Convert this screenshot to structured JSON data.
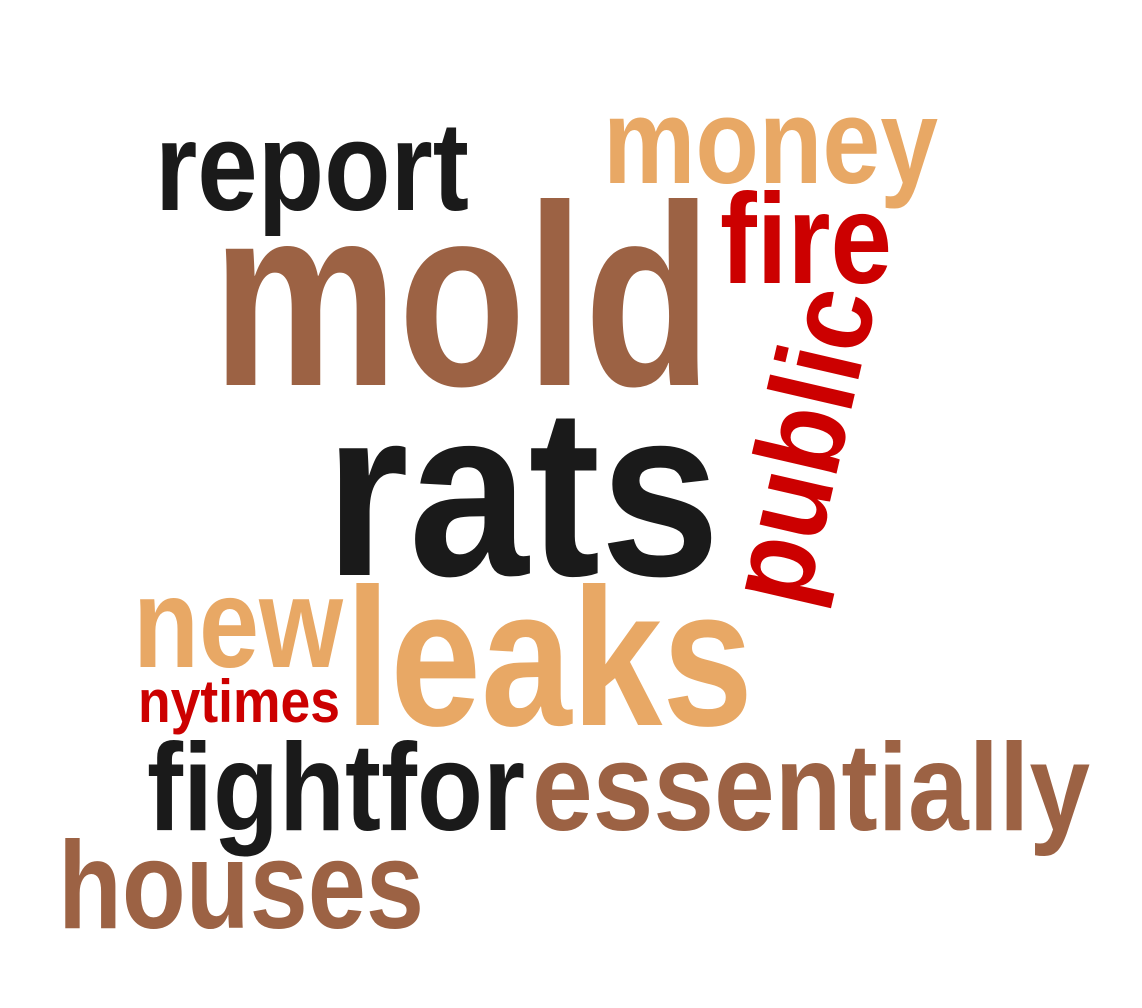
{
  "colors": {
    "brown": "#9c6244",
    "black": "#1a1a1a",
    "tan": "#e8a865",
    "red": "#cc0000"
  },
  "words": [
    {
      "text": "report",
      "color": "brown_black"
    },
    {
      "text": "money",
      "color": "tan"
    },
    {
      "text": "mold",
      "color": "brown"
    },
    {
      "text": "fire",
      "color": "red"
    },
    {
      "text": "public",
      "color": "red"
    },
    {
      "text": "rats",
      "color": "black"
    },
    {
      "text": "new",
      "color": "tan"
    },
    {
      "text": "leaks",
      "color": "tan"
    },
    {
      "text": "nytimes",
      "color": "red"
    },
    {
      "text": "fightfor",
      "color": "black"
    },
    {
      "text": "essentially",
      "color": "brown"
    },
    {
      "text": "houses",
      "color": "brown"
    }
  ]
}
